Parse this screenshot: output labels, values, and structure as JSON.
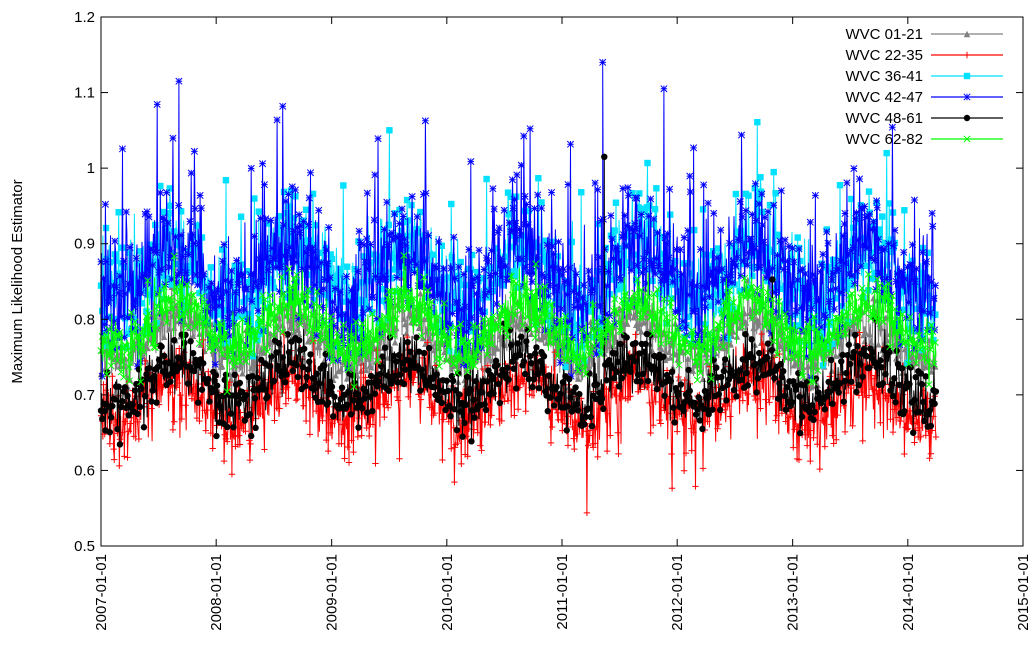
{
  "chart_data": {
    "type": "line",
    "ylabel": "Maximum Likelihood Estimator",
    "xlabel": "",
    "ylim": [
      0.5,
      1.2
    ],
    "yticks": [
      0.5,
      0.6,
      0.7,
      0.8,
      0.9,
      1,
      1.1,
      1.2
    ],
    "xlim": [
      "2007-01-01",
      "2015-01-01"
    ],
    "xticks": [
      "2007-01-01",
      "2008-01-01",
      "2009-01-01",
      "2010-01-01",
      "2011-01-01",
      "2012-01-01",
      "2013-01-01",
      "2014-01-01",
      "2015-01-01"
    ],
    "x_data_range": [
      "2007-01-01",
      "2014-03-31"
    ],
    "legend_position": "top-right",
    "grid": false,
    "series": [
      {
        "name": "WVC 01-21",
        "color": "#808080",
        "marker": "triangle",
        "base": 0.772,
        "amplitude": 0.03,
        "noise": 0.02,
        "spike_prob": 0.0,
        "spike_mag": 0.0
      },
      {
        "name": "WVC 22-35",
        "color": "#ff0000",
        "marker": "plus",
        "base": 0.695,
        "amplitude": 0.03,
        "noise": 0.025,
        "spike_prob": 0.04,
        "spike_mag": -0.05
      },
      {
        "name": "WVC 36-41",
        "color": "#00e0ff",
        "marker": "square",
        "base": 0.86,
        "amplitude": 0.035,
        "noise": 0.035,
        "spike_prob": 0.025,
        "spike_mag": 0.1
      },
      {
        "name": "WVC 42-47",
        "color": "#0000ff",
        "marker": "asterisk",
        "base": 0.858,
        "amplitude": 0.04,
        "noise": 0.04,
        "spike_prob": 0.035,
        "spike_mag": 0.13
      },
      {
        "name": "WVC 48-61",
        "color": "#000000",
        "marker": "circle",
        "base": 0.718,
        "amplitude": 0.028,
        "noise": 0.02,
        "spike_prob": 0.006,
        "spike_mag": 0.1
      },
      {
        "name": "WVC 62-82",
        "color": "#00ff00",
        "marker": "cross",
        "base": 0.792,
        "amplitude": 0.032,
        "noise": 0.02,
        "spike_prob": 0.0,
        "spike_mag": 0.0
      }
    ],
    "notable_points": [
      {
        "series": "WVC 42-47",
        "x": "2011-05-10",
        "y": 1.14
      },
      {
        "series": "WVC 42-47",
        "x": "2007-09-05",
        "y": 1.115
      },
      {
        "series": "WVC 48-61",
        "x": "2011-05-15",
        "y": 1.015
      },
      {
        "series": "WVC 22-35",
        "x": "2008-02-20",
        "y": 0.595
      }
    ]
  }
}
